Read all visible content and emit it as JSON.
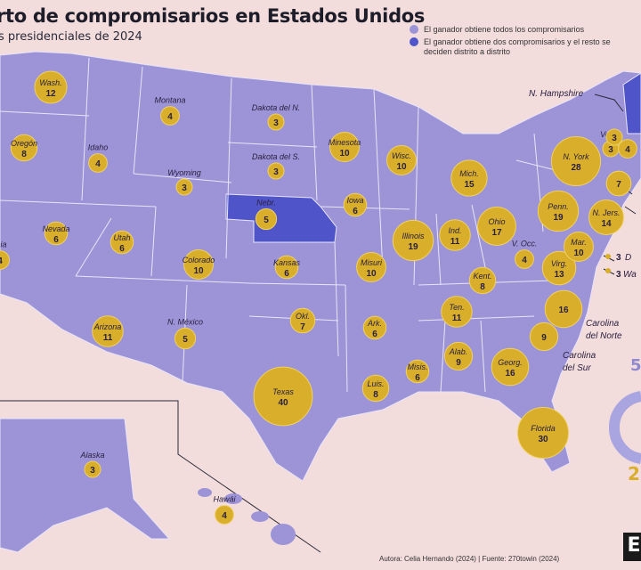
{
  "header": {
    "title": "rto de compromisarios en Estados Unidos",
    "subtitle": "s presidenciales de 2024"
  },
  "legend": {
    "all": "El ganador obtiene todos los compromisarios",
    "split": "El ganador obtiene dos compromisarios y el resto se deciden distrito a distrito"
  },
  "colors": {
    "background": "#f3dcdc",
    "states": "#9d94d8",
    "split_states": "#4f55c9",
    "bubble": "#d8ae2a",
    "bubble_edge": "#f0d060"
  },
  "states": [
    {
      "name": "Wash.",
      "votes": 12
    },
    {
      "name": "Oregón",
      "votes": 8
    },
    {
      "name": "rnia",
      "votes": "4"
    },
    {
      "name": "Nevada",
      "votes": 6
    },
    {
      "name": "Idaho",
      "votes": 4
    },
    {
      "name": "Montana",
      "votes": 4
    },
    {
      "name": "Wyoming",
      "votes": 3
    },
    {
      "name": "Utah",
      "votes": 6
    },
    {
      "name": "Arizona",
      "votes": 11
    },
    {
      "name": "Colorado",
      "votes": 10
    },
    {
      "name": "N. México",
      "votes": 5
    },
    {
      "name": "Dakota del N.",
      "votes": 3
    },
    {
      "name": "Dakota del S.",
      "votes": 3
    },
    {
      "name": "Nebr.",
      "votes": 5
    },
    {
      "name": "Kansas",
      "votes": 6
    },
    {
      "name": "Okl.",
      "votes": 7
    },
    {
      "name": "Texas",
      "votes": 40
    },
    {
      "name": "Minesota",
      "votes": 10
    },
    {
      "name": "Iowa",
      "votes": 6
    },
    {
      "name": "Misuri",
      "votes": 10
    },
    {
      "name": "Ark.",
      "votes": 6
    },
    {
      "name": "Luis.",
      "votes": 8
    },
    {
      "name": "Wisc.",
      "votes": 10
    },
    {
      "name": "Illinois",
      "votes": 19
    },
    {
      "name": "Mich.",
      "votes": 15
    },
    {
      "name": "Ind.",
      "votes": 11
    },
    {
      "name": "Ohio",
      "votes": 17
    },
    {
      "name": "Kent.",
      "votes": 8
    },
    {
      "name": "Ten.",
      "votes": 11
    },
    {
      "name": "Misis.",
      "votes": 6
    },
    {
      "name": "Alab.",
      "votes": 9
    },
    {
      "name": "Georg.",
      "votes": 16
    },
    {
      "name": "Florida",
      "votes": 30
    },
    {
      "name": "",
      "votes": 9
    },
    {
      "name": "",
      "votes": 16
    },
    {
      "name": "V. Occ.",
      "votes": 4
    },
    {
      "name": "Virg.",
      "votes": 13
    },
    {
      "name": "Penn.",
      "votes": 19
    },
    {
      "name": "N. York",
      "votes": 28
    },
    {
      "name": "N. Jers.",
      "votes": 14
    },
    {
      "name": "Mar.",
      "votes": 10
    },
    {
      "name": "Verm.",
      "votes": 3
    },
    {
      "name": "",
      "votes": 4
    },
    {
      "name": "",
      "votes": 7
    },
    {
      "name": "Alaska",
      "votes": 3
    },
    {
      "name": "Hawái",
      "votes": 4
    },
    {
      "name": "",
      "votes": 3
    },
    {
      "name": "",
      "votes": 7
    }
  ],
  "callouts": {
    "nh": "N. Hampshire",
    "carolina_norte_1": "Carolina",
    "carolina_norte_2": "del Norte",
    "carolina_sur_1": "Carolina",
    "carolina_sur_2": "del Sur",
    "dc_num": "3",
    "dc_label": "D",
    "was_num": "3",
    "was_label": "Wa",
    "kent_num": "7"
  },
  "side": {
    "top": "5",
    "bottom": "2"
  },
  "source": "Autora: Celia Hernando (2024) | Fuente: 270towin (2024)",
  "logo": "E"
}
